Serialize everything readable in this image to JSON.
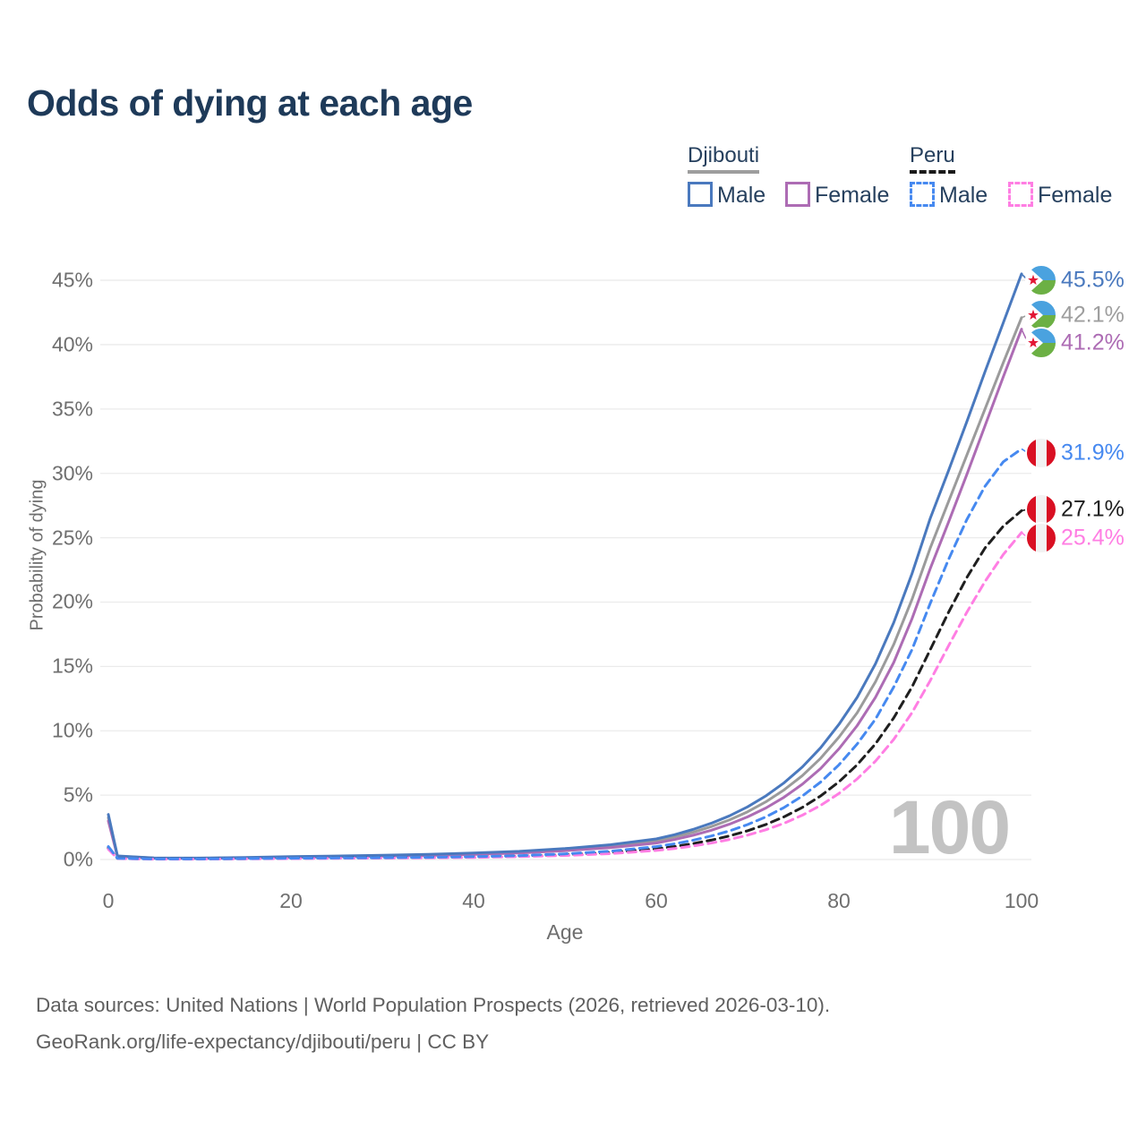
{
  "title": "Odds of dying at each age",
  "legend": {
    "groups": [
      {
        "name": "Djibouti",
        "line_style": "solid",
        "underline_color": "#9e9e9e",
        "items": [
          {
            "label": "Male",
            "color": "#4a79be",
            "dashed": false
          },
          {
            "label": "Female",
            "color": "#ad6cb4",
            "dashed": false
          }
        ]
      },
      {
        "name": "Peru",
        "line_style": "dashed",
        "underline_color": "#1a1a1a",
        "items": [
          {
            "label": "Male",
            "color": "#4689f0",
            "dashed": true
          },
          {
            "label": "Female",
            "color": "#ff7ee3",
            "dashed": true
          }
        ]
      }
    ]
  },
  "chart_data": {
    "type": "line",
    "title": "Odds of dying at each age",
    "xlabel": "Age",
    "ylabel": "Probability of dying",
    "x_ticks": [
      {
        "label": "0",
        "value": 0
      },
      {
        "label": "20",
        "value": 20
      },
      {
        "label": "40",
        "value": 40
      },
      {
        "label": "60",
        "value": 60
      },
      {
        "label": "80",
        "value": 80
      },
      {
        "label": "100",
        "value": 100
      }
    ],
    "y_ticks": [
      {
        "label": "0%",
        "value": 0
      },
      {
        "label": "5%",
        "value": 5
      },
      {
        "label": "10%",
        "value": 10
      },
      {
        "label": "15%",
        "value": 15
      },
      {
        "label": "20%",
        "value": 20
      },
      {
        "label": "25%",
        "value": 25
      },
      {
        "label": "30%",
        "value": 30
      },
      {
        "label": "35%",
        "value": 35
      },
      {
        "label": "40%",
        "value": 40
      },
      {
        "label": "45%",
        "value": 45
      }
    ],
    "xlim": [
      0,
      100
    ],
    "ylim": [
      0,
      47
    ],
    "grid": "horizontal",
    "legend_position": "top-right",
    "watermark": "100",
    "ages": [
      0,
      1,
      5,
      10,
      15,
      20,
      25,
      30,
      35,
      40,
      45,
      50,
      55,
      60,
      62,
      64,
      66,
      68,
      70,
      72,
      74,
      76,
      78,
      80,
      82,
      84,
      86,
      88,
      90,
      92,
      94,
      96,
      98,
      100
    ],
    "series": [
      {
        "name": "Djibouti",
        "country": "Djibouti",
        "color": "#9b9b9b",
        "dashed": false,
        "flag": "djibouti",
        "end_label": {
          "text": "42.1%",
          "value": 42.1,
          "label_y_pct": 42.3
        },
        "values": [
          3.25,
          0.26,
          0.11,
          0.1,
          0.14,
          0.2,
          0.25,
          0.3,
          0.36,
          0.45,
          0.57,
          0.77,
          1.04,
          1.45,
          1.75,
          2.11,
          2.55,
          3.07,
          3.71,
          4.48,
          5.41,
          6.52,
          7.87,
          9.5,
          11.4,
          13.8,
          16.7,
          20.2,
          24.2,
          27.8,
          31.4,
          35.0,
          38.6,
          42.1
        ]
      },
      {
        "name": "Djibouti Female",
        "country": "Djibouti",
        "sex": "Female",
        "color": "#ad6cb4",
        "dashed": false,
        "flag": "djibouti",
        "end_label": {
          "text": "41.2%",
          "value": 41.2,
          "label_y_pct": 40.15
        },
        "values": [
          3.0,
          0.24,
          0.1,
          0.09,
          0.12,
          0.17,
          0.21,
          0.26,
          0.31,
          0.39,
          0.5,
          0.68,
          0.92,
          1.28,
          1.55,
          1.88,
          2.27,
          2.74,
          3.31,
          4.0,
          4.84,
          5.85,
          7.07,
          8.6,
          10.4,
          12.6,
          15.3,
          18.7,
          22.6,
          26.2,
          29.9,
          33.7,
          37.5,
          41.2
        ]
      },
      {
        "name": "Djibouti Male",
        "country": "Djibouti",
        "sex": "Male",
        "color": "#4a79be",
        "dashed": false,
        "flag": "djibouti",
        "end_label": {
          "text": "45.5%",
          "value": 45.5,
          "label_y_pct": 45.0
        },
        "values": [
          3.5,
          0.28,
          0.12,
          0.11,
          0.16,
          0.22,
          0.27,
          0.33,
          0.4,
          0.5,
          0.63,
          0.85,
          1.15,
          1.6,
          1.93,
          2.33,
          2.81,
          3.39,
          4.09,
          4.94,
          5.96,
          7.19,
          8.68,
          10.5,
          12.6,
          15.2,
          18.4,
          22.2,
          26.5,
          30.2,
          34.0,
          37.9,
          41.7,
          45.5
        ]
      },
      {
        "name": "Peru",
        "country": "Peru",
        "color": "#1f1f1f",
        "dashed": true,
        "flag": "peru",
        "end_label": {
          "text": "27.1%",
          "value": 27.1,
          "label_y_pct": 27.2
        },
        "values": [
          0.9,
          0.08,
          0.04,
          0.04,
          0.06,
          0.09,
          0.11,
          0.13,
          0.15,
          0.19,
          0.26,
          0.37,
          0.55,
          0.83,
          1.01,
          1.23,
          1.5,
          1.83,
          2.23,
          2.72,
          3.32,
          4.05,
          4.94,
          6.03,
          7.36,
          8.98,
          11.0,
          13.4,
          16.3,
          19.2,
          21.9,
          24.2,
          25.9,
          27.1
        ]
      },
      {
        "name": "Peru Female",
        "country": "Peru",
        "sex": "Female",
        "color": "#ff7ee3",
        "dashed": true,
        "flag": "peru",
        "end_label": {
          "text": "25.4%",
          "value": 25.4,
          "label_y_pct": 25.0
        },
        "values": [
          0.8,
          0.07,
          0.03,
          0.03,
          0.05,
          0.07,
          0.09,
          0.11,
          0.13,
          0.16,
          0.22,
          0.31,
          0.46,
          0.7,
          0.85,
          1.04,
          1.27,
          1.55,
          1.89,
          2.31,
          2.82,
          3.44,
          4.2,
          5.13,
          6.26,
          7.64,
          9.33,
          11.4,
          13.9,
          16.6,
          19.2,
          21.6,
          23.7,
          25.4
        ]
      },
      {
        "name": "Peru Male",
        "country": "Peru",
        "sex": "Male",
        "color": "#4689f0",
        "dashed": true,
        "flag": "peru",
        "end_label": {
          "text": "31.9%",
          "value": 31.9,
          "label_y_pct": 31.6
        },
        "values": [
          1.0,
          0.09,
          0.04,
          0.04,
          0.07,
          0.1,
          0.12,
          0.14,
          0.17,
          0.22,
          0.3,
          0.44,
          0.65,
          1.0,
          1.22,
          1.49,
          1.82,
          2.22,
          2.71,
          3.31,
          4.04,
          4.93,
          6.02,
          7.35,
          8.97,
          10.9,
          13.4,
          16.3,
          19.9,
          23.3,
          26.4,
          29.0,
          30.9,
          31.9
        ]
      }
    ]
  },
  "footer": {
    "line1": "Data sources: United Nations | World Population Prospects (2026, retrieved 2026-03-10).",
    "line2": "GeoRank.org/life-expectancy/djibouti/peru | CC BY"
  }
}
